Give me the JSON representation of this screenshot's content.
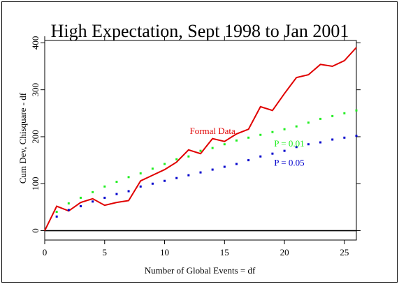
{
  "chart_data": {
    "type": "line",
    "title": "High Expectation, Sept 1998 to Jan 2001",
    "xlabel": "Number of Global Events = df",
    "ylabel": "Cum Dev, Chisquare - df",
    "xlim": [
      0,
      26
    ],
    "ylim": [
      -20,
      405
    ],
    "x_ticks": [
      0,
      5,
      10,
      15,
      20,
      25
    ],
    "y_ticks": [
      0,
      100,
      200,
      300,
      400
    ],
    "x_tick_labels": [
      "0",
      "5",
      "10",
      "15",
      "20",
      "25"
    ],
    "y_tick_labels": [
      "0",
      "100",
      "200",
      "300",
      "400"
    ],
    "grid": false,
    "zero_line": true,
    "series": [
      {
        "name": "Formal Data",
        "style": "line",
        "color": "#e00000",
        "x": [
          0,
          1,
          2,
          3,
          4,
          5,
          6,
          7,
          8,
          9,
          10,
          11,
          12,
          13,
          14,
          15,
          16,
          17,
          18,
          19,
          20,
          21,
          22,
          23,
          24,
          25,
          26
        ],
        "values": [
          0,
          52,
          42,
          60,
          68,
          54,
          60,
          64,
          106,
          118,
          130,
          146,
          172,
          164,
          196,
          190,
          206,
          216,
          264,
          256,
          292,
          326,
          332,
          354,
          350,
          362,
          390
        ]
      },
      {
        "name": "P = 0.01",
        "style": "dots",
        "color": "#22ee22",
        "x": [
          0,
          1,
          2,
          3,
          4,
          5,
          6,
          7,
          8,
          9,
          10,
          11,
          12,
          13,
          14,
          15,
          16,
          17,
          18,
          19,
          20,
          21,
          22,
          23,
          24,
          25,
          26
        ],
        "values": [
          0,
          40,
          58,
          70,
          82,
          94,
          104,
          114,
          122,
          132,
          142,
          152,
          158,
          170,
          176,
          184,
          192,
          198,
          204,
          210,
          216,
          222,
          230,
          238,
          244,
          250,
          256
        ]
      },
      {
        "name": "P = 0.05",
        "style": "dots",
        "color": "#0000cc",
        "x": [
          0,
          1,
          2,
          3,
          4,
          5,
          6,
          7,
          8,
          9,
          10,
          11,
          12,
          13,
          14,
          15,
          16,
          17,
          18,
          19,
          20,
          21,
          22,
          23,
          24,
          25,
          26
        ],
        "values": [
          0,
          30,
          44,
          52,
          62,
          70,
          78,
          84,
          94,
          100,
          106,
          112,
          118,
          124,
          130,
          136,
          142,
          150,
          158,
          164,
          170,
          178,
          184,
          188,
          194,
          198,
          202
        ]
      }
    ],
    "annotations": [
      {
        "text": "Formal Data",
        "color": "#e00000",
        "x": 14,
        "y": 206
      },
      {
        "text": "P = 0.01",
        "color": "#22ee22",
        "x": 20.4,
        "y": 179
      },
      {
        "text": "P = 0.05",
        "color": "#0000cc",
        "x": 20.4,
        "y": 138
      }
    ]
  }
}
